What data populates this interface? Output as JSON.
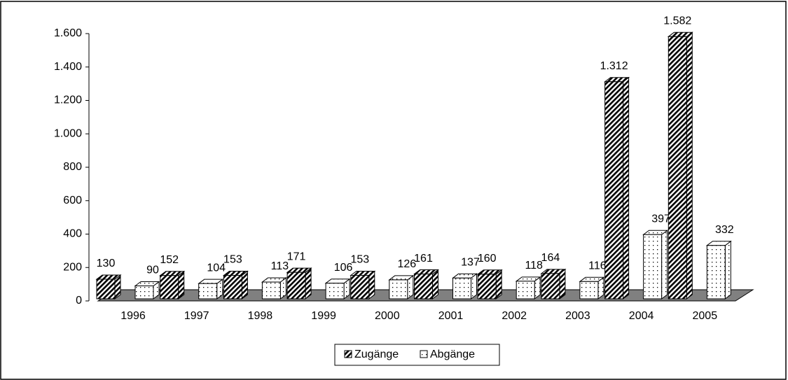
{
  "chart_data": {
    "type": "bar3d",
    "categories": [
      "1996",
      "1997",
      "1998",
      "1999",
      "2000",
      "2001",
      "2002",
      "2003",
      "2004",
      "2005"
    ],
    "series": [
      {
        "name": "Zugänge",
        "color": "#000000",
        "values": [
          130,
          152,
          153,
          171,
          153,
          161,
          160,
          164,
          1312,
          1582
        ],
        "value_labels": [
          "130",
          "152",
          "153",
          "171",
          "153",
          "161",
          "160",
          "164",
          "1.312",
          "1.582"
        ]
      },
      {
        "name": "Abgänge",
        "color": "#ffffff",
        "values": [
          90,
          104,
          113,
          106,
          126,
          137,
          118,
          116,
          397,
          332
        ],
        "value_labels": [
          "90",
          "104",
          "113",
          "106",
          "126",
          "137",
          "118",
          "116",
          "397",
          "332"
        ]
      }
    ],
    "ylim": [
      0,
      1600
    ],
    "yticks": [
      0,
      200,
      400,
      600,
      800,
      {
        "value": 1000,
        "label": "1.000"
      },
      {
        "value": 1200,
        "label": "1.200"
      },
      {
        "value": 1400,
        "label": "1.400"
      },
      {
        "value": 1600,
        "label": "1.600"
      }
    ],
    "legend": "bottom"
  }
}
